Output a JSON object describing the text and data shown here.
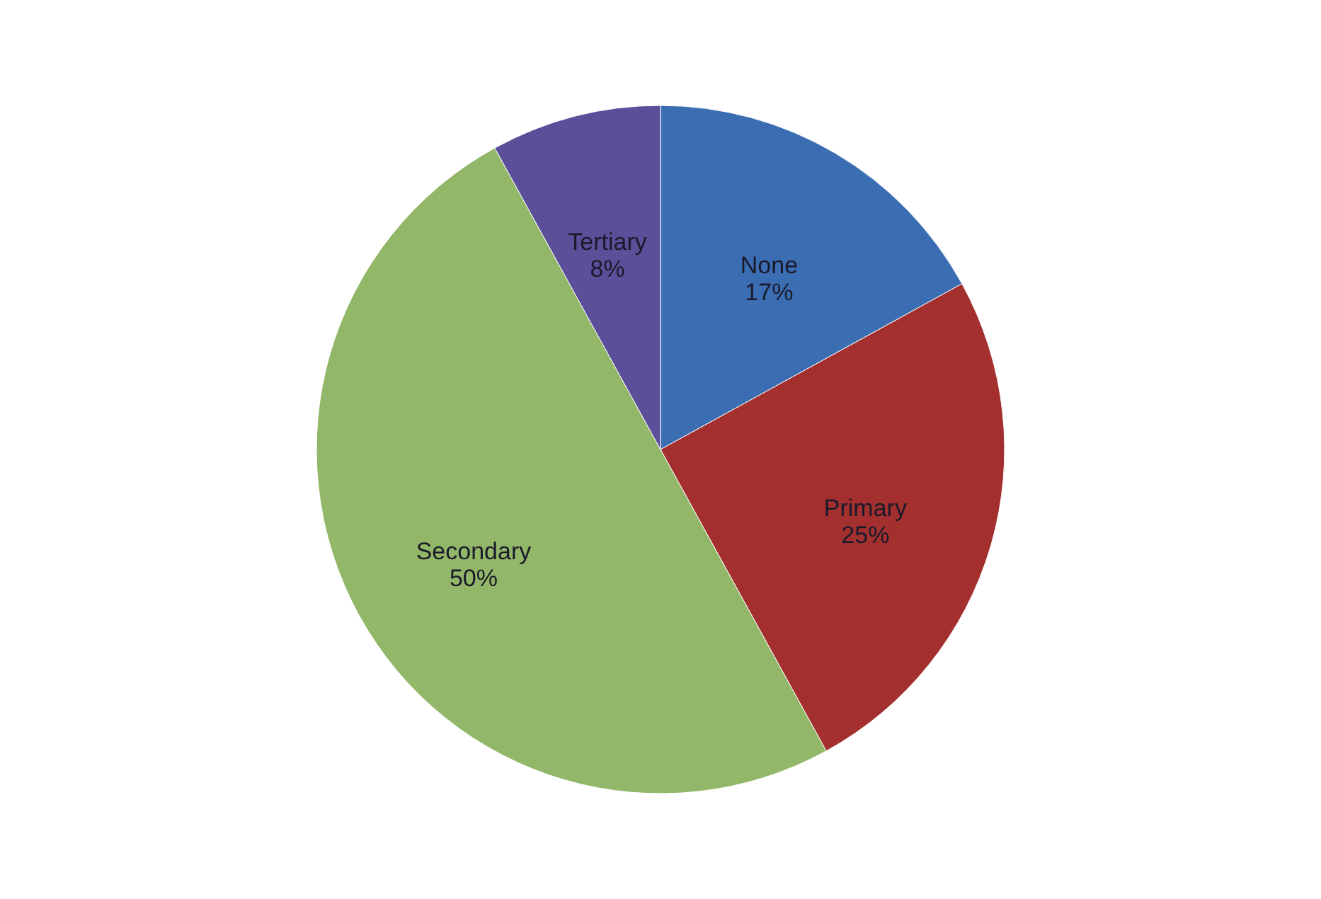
{
  "chart_data": {
    "type": "pie",
    "categories": [
      "None",
      "Primary",
      "Secondary",
      "Tertiary"
    ],
    "values": [
      17,
      25,
      50,
      8
    ],
    "value_labels": [
      "17%",
      "25%",
      "50%",
      "8%"
    ],
    "colors": [
      "#3b6db3",
      "#a3302e",
      "#92b768",
      "#5b4f99"
    ]
  }
}
